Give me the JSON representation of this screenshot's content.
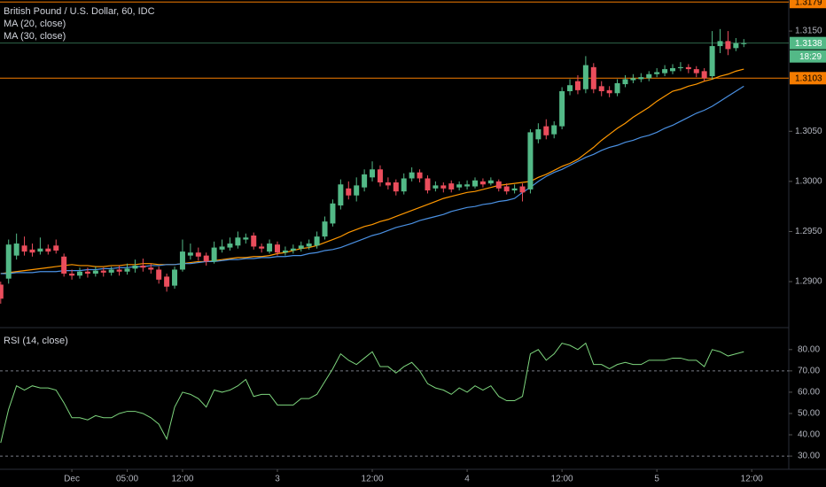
{
  "chart_data": [
    {
      "type": "candlestick",
      "title": "British Pound / U.S. Dollar, 60, IDC",
      "categories": [
        null,
        null,
        null,
        null,
        null,
        null,
        null,
        null,
        null,
        "Dec",
        null,
        null,
        null,
        null,
        null,
        null,
        "05:00",
        null,
        null,
        null,
        null,
        null,
        null,
        "12:00",
        null,
        null,
        null,
        null,
        null,
        null,
        null,
        null,
        null,
        null,
        null,
        "3",
        null,
        null,
        null,
        null,
        null,
        null,
        null,
        null,
        null,
        null,
        null,
        "12:00",
        null,
        null,
        null,
        null,
        null,
        null,
        null,
        null,
        null,
        null,
        null,
        "4",
        null,
        null,
        null,
        null,
        null,
        null,
        null,
        null,
        null,
        null,
        null,
        "12:00",
        null,
        null,
        null,
        null,
        null,
        null,
        null,
        null,
        null,
        null,
        null,
        "5",
        null,
        null,
        null,
        null,
        null,
        null,
        null,
        null,
        null,
        null,
        null,
        "12:00"
      ],
      "open": [
        1.2897,
        1.2903,
        1.2926,
        1.2936,
        1.2932,
        1.293,
        1.2933,
        1.2936,
        1.2925,
        1.2908,
        1.2906,
        1.291,
        1.2908,
        1.2911,
        1.2909,
        1.2912,
        1.291,
        1.2913,
        1.2916,
        1.2914,
        1.2912,
        1.2905,
        1.2896,
        1.2912,
        1.2926,
        1.2929,
        1.2926,
        1.292,
        1.2932,
        1.2934,
        1.2936,
        1.2942,
        1.2946,
        1.2935,
        1.293,
        1.2937,
        1.2929,
        1.2931,
        1.2933,
        1.2935,
        1.2936,
        1.2945,
        1.2958,
        1.2976,
        1.2993,
        1.2986,
        1.2994,
        1.3004,
        1.3012,
        1.2999,
        1.2999,
        1.299,
        1.3003,
        1.3009,
        1.3003,
        1.2993,
        1.2996,
        1.2998,
        1.2994,
        1.2995,
        1.2995,
        1.3,
        1.2998,
        1.3,
        1.2995,
        1.2991,
        1.2995,
        1.2992,
        1.3042,
        1.3055,
        1.3047,
        1.3055,
        1.309,
        1.31,
        1.3092,
        1.3114,
        1.3095,
        1.3091,
        1.3088,
        1.3097,
        1.3101,
        1.3102,
        1.3103,
        1.3107,
        1.3108,
        1.311,
        1.3113,
        1.3114,
        1.3112,
        1.311,
        1.3105,
        1.3135,
        1.314,
        1.3133,
        1.3137,
        null
      ],
      "high": [
        1.29,
        1.2942,
        1.2948,
        1.2945,
        1.2938,
        1.2944,
        1.2937,
        1.2942,
        1.2928,
        1.2912,
        1.2914,
        1.2914,
        1.2915,
        1.2914,
        1.2915,
        1.2916,
        1.2918,
        1.2922,
        1.2923,
        1.2918,
        1.2915,
        1.2908,
        1.2915,
        1.2942,
        1.2938,
        1.2934,
        1.2929,
        1.294,
        1.2942,
        1.2944,
        1.295,
        1.2948,
        1.2949,
        1.2938,
        1.2942,
        1.294,
        1.2935,
        1.2937,
        1.294,
        1.2942,
        1.295,
        1.2965,
        1.2982,
        1.3002,
        1.3,
        1.3004,
        1.3012,
        1.302,
        1.3016,
        1.3004,
        1.3002,
        1.3008,
        1.3014,
        1.3012,
        1.3006,
        1.3,
        1.2999,
        1.3001,
        1.3,
        1.3001,
        1.3004,
        1.3003,
        1.3004,
        1.3002,
        1.2998,
        1.2997,
        1.2998,
        1.3052,
        1.3058,
        1.3062,
        1.306,
        1.3094,
        1.3102,
        1.3106,
        1.3125,
        1.3118,
        1.31,
        1.3095,
        1.3102,
        1.3106,
        1.3107,
        1.3108,
        1.311,
        1.3113,
        1.3116,
        1.3117,
        1.3119,
        1.3117,
        1.3115,
        1.3113,
        1.315,
        1.3152,
        1.315,
        1.3143,
        1.3142,
        null
      ],
      "low": [
        1.2878,
        1.2898,
        1.2922,
        1.2926,
        1.2925,
        1.2927,
        1.2927,
        1.2928,
        1.2905,
        1.2902,
        1.2903,
        1.2904,
        1.2905,
        1.2905,
        1.2906,
        1.2906,
        1.2907,
        1.2909,
        1.291,
        1.2908,
        1.2898,
        1.289,
        1.2893,
        1.291,
        1.2922,
        1.2921,
        1.2916,
        1.2918,
        1.2929,
        1.2931,
        1.2933,
        1.2938,
        1.2932,
        1.2929,
        1.2928,
        1.2926,
        1.2926,
        1.2928,
        1.293,
        1.2932,
        1.2933,
        1.2942,
        1.2955,
        1.2972,
        1.2982,
        1.298,
        1.299,
        1.3,
        1.2995,
        1.2992,
        1.2986,
        1.2987,
        1.3,
        1.2999,
        1.2988,
        1.299,
        1.2989,
        1.2989,
        1.2991,
        1.2992,
        1.2993,
        1.2994,
        1.2996,
        1.299,
        1.2987,
        1.2988,
        1.298,
        1.2988,
        1.3038,
        1.3042,
        1.3043,
        1.3052,
        1.3086,
        1.3087,
        1.3088,
        1.3088,
        1.3085,
        1.3084,
        1.3085,
        1.3094,
        1.3098,
        1.3099,
        1.31,
        1.3104,
        1.3105,
        1.3107,
        1.311,
        1.3108,
        1.3104,
        1.31,
        1.3102,
        1.3128,
        1.3126,
        1.313,
        1.3134,
        null
      ],
      "close": [
        1.2883,
        1.2937,
        1.2938,
        1.293,
        1.2929,
        1.2933,
        1.293,
        1.2931,
        1.2908,
        1.2906,
        1.291,
        1.2908,
        1.2911,
        1.2909,
        1.2912,
        1.291,
        1.2913,
        1.2916,
        1.2914,
        1.2912,
        1.2902,
        1.2895,
        1.2912,
        1.293,
        1.2929,
        1.2925,
        1.292,
        1.2934,
        1.2935,
        1.2938,
        1.2944,
        1.2944,
        1.2935,
        1.2933,
        1.2938,
        1.2929,
        1.2931,
        1.2933,
        1.2936,
        1.2938,
        1.2945,
        1.296,
        1.2978,
        1.2997,
        1.2986,
        1.2996,
        1.3007,
        1.3012,
        1.2999,
        1.2996,
        1.299,
        1.3003,
        1.3009,
        1.3003,
        1.2991,
        1.2996,
        1.2993,
        1.2992,
        1.2997,
        1.2997,
        1.3001,
        1.2997,
        1.3001,
        1.2993,
        1.299,
        1.2993,
        1.2989,
        1.3049,
        1.3052,
        1.3046,
        1.3056,
        1.309,
        1.3096,
        1.3091,
        1.3116,
        1.3092,
        1.309,
        1.3088,
        1.3098,
        1.3102,
        1.3103,
        1.3104,
        1.3107,
        1.3109,
        1.3112,
        1.3113,
        1.3114,
        1.3112,
        1.3108,
        1.3103,
        1.3135,
        1.314,
        1.3132,
        1.3138,
        1.3138,
        null
      ],
      "up_color": "#53b987",
      "down_color": "#eb4d5c",
      "series": [
        {
          "name": "MA (20, close)",
          "color": "#ff9800",
          "values": [
            1.2908,
            1.2909,
            1.291,
            1.2911,
            1.2912,
            1.2913,
            1.2914,
            1.2915,
            1.2916,
            1.2917,
            1.2916,
            1.2916,
            1.2915,
            1.2915,
            1.2916,
            1.2916,
            1.2917,
            1.2917,
            1.2918,
            1.2918,
            1.2917,
            1.2917,
            1.2917,
            1.2918,
            1.2919,
            1.292,
            1.292,
            1.2921,
            1.2922,
            1.2923,
            1.2924,
            1.2924,
            1.2925,
            1.2925,
            1.2926,
            1.2928,
            1.2929,
            1.2931,
            1.2933,
            1.2934,
            1.2936,
            1.2939,
            1.2942,
            1.2945,
            1.2949,
            1.2952,
            1.2955,
            1.2957,
            1.296,
            1.2962,
            1.2965,
            1.2968,
            1.2971,
            1.2974,
            1.2977,
            1.298,
            1.2983,
            1.2985,
            1.2987,
            1.2989,
            1.299,
            1.2992,
            1.2994,
            1.2996,
            1.2997,
            1.2998,
            1.2999,
            1.3,
            1.3004,
            1.3007,
            1.3011,
            1.3015,
            1.3018,
            1.3022,
            1.3028,
            1.3034,
            1.3041,
            1.3047,
            1.3053,
            1.3058,
            1.3064,
            1.3069,
            1.3074,
            1.308,
            1.3085,
            1.309,
            1.3092,
            1.3095,
            1.3097,
            1.31,
            1.3102,
            1.3105,
            1.3107,
            1.311,
            1.3112,
            null
          ]
        },
        {
          "name": "MA (30, close)",
          "color": "#4a90e2",
          "values": [
            1.2908,
            1.2908,
            1.2909,
            1.2909,
            1.2909,
            1.291,
            1.291,
            1.291,
            1.2911,
            1.2911,
            1.2911,
            1.2912,
            1.2912,
            1.2913,
            1.2913,
            1.2914,
            1.2914,
            1.2915,
            1.2915,
            1.2916,
            1.2916,
            1.2917,
            1.2917,
            1.2918,
            1.2918,
            1.2919,
            1.292,
            1.292,
            1.2921,
            1.2922,
            1.2922,
            1.2923,
            1.2923,
            1.2924,
            1.2924,
            1.2925,
            1.2925,
            1.2926,
            1.2926,
            1.2928,
            1.2929,
            1.2931,
            1.2932,
            1.2934,
            1.2937,
            1.294,
            1.2943,
            1.2946,
            1.2948,
            1.2951,
            1.2954,
            1.2956,
            1.2958,
            1.2961,
            1.2963,
            1.2965,
            1.2967,
            1.297,
            1.2972,
            1.2974,
            1.2975,
            1.2977,
            1.2978,
            1.298,
            1.2981,
            1.2983,
            1.2989,
            1.2994,
            1.3,
            1.3005,
            1.3009,
            1.3012,
            1.3016,
            1.302,
            1.3024,
            1.3027,
            1.3031,
            1.3034,
            1.3036,
            1.3039,
            1.3041,
            1.3044,
            1.3046,
            1.3049,
            1.3053,
            1.3056,
            1.306,
            1.3064,
            1.3068,
            1.3071,
            1.3075,
            1.308,
            1.3085,
            1.309,
            1.3095,
            null
          ]
        }
      ],
      "ylim": [
        1.2855,
        1.3181
      ],
      "yticks": [
        {
          "value": 1.29,
          "label": "1.2900"
        },
        {
          "value": 1.295,
          "label": "1.2950"
        },
        {
          "value": 1.3,
          "label": "1.3000"
        },
        {
          "value": 1.305,
          "label": "1.3050"
        },
        {
          "value": 1.315,
          "label": "1.3150"
        }
      ],
      "price_lines": [
        {
          "value": 1.3179,
          "label": "1.3179",
          "color": "#f57c00"
        },
        {
          "value": 1.3138,
          "label": "1.3138",
          "color": "#53b987"
        },
        {
          "value": 1.3103,
          "label": "1.3103",
          "color": "#f57c00"
        }
      ],
      "countdown": "18:29"
    },
    {
      "type": "line",
      "title": "RSI (14, close)",
      "color": "#7ed67e",
      "values": [
        36.2,
        52,
        63,
        61,
        63,
        62,
        62,
        61,
        55,
        48,
        48,
        47,
        49,
        48,
        48,
        50,
        51,
        51,
        50,
        48,
        45,
        38,
        53,
        60,
        59,
        57,
        53,
        61,
        60,
        61,
        63,
        66,
        58,
        59,
        59,
        54,
        54,
        54,
        57,
        57,
        59,
        65,
        71,
        78,
        75,
        73,
        76,
        79,
        72,
        72,
        69,
        72,
        74,
        70,
        64,
        62,
        61,
        59,
        62,
        60,
        63,
        61,
        63,
        58,
        56,
        56,
        58,
        78,
        80,
        75,
        78,
        83,
        82,
        80,
        83,
        73,
        73,
        71,
        73,
        74,
        73,
        73,
        75,
        75,
        75,
        76,
        76,
        75,
        75,
        72,
        80,
        79,
        77,
        78,
        79,
        null
      ],
      "ylim": [
        23.8,
        89.9
      ],
      "yticks": [
        {
          "value": 80,
          "label": "80.00"
        },
        {
          "value": 70,
          "label": "70.00"
        },
        {
          "value": 60,
          "label": "60.00"
        },
        {
          "value": 50,
          "label": "50.00"
        },
        {
          "value": 40,
          "label": "40.00"
        },
        {
          "value": 30,
          "label": "30.00"
        }
      ],
      "bands": [
        70,
        30
      ]
    }
  ]
}
